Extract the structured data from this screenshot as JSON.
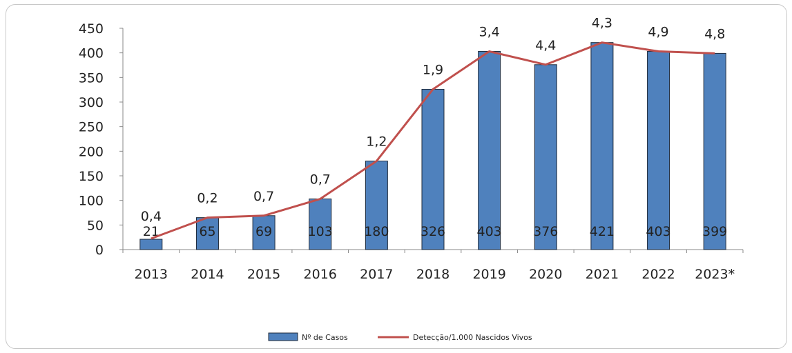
{
  "chart_data": {
    "type": "bar",
    "categories": [
      "2013",
      "2014",
      "2015",
      "2016",
      "2017",
      "2018",
      "2019",
      "2020",
      "2021",
      "2022",
      "2023*"
    ],
    "series": [
      {
        "name": "Nº de Casos",
        "type": "bar",
        "values": [
          21,
          65,
          69,
          103,
          180,
          326,
          403,
          376,
          421,
          403,
          399
        ],
        "labels": [
          "21",
          "65",
          "69",
          "103",
          "180",
          "326",
          "403",
          "376",
          "421",
          "403",
          "399"
        ],
        "color": "#4F81BD"
      },
      {
        "name": "Detecção/1.000 Nascidos Vivos",
        "type": "line",
        "labels": [
          "0,4",
          "0,2",
          "0,7",
          "0,7",
          "1,2",
          "1,9",
          "3,4",
          "4,4",
          "4,3",
          "4,9",
          "4,8"
        ],
        "color": "#C0504D"
      }
    ],
    "yticks": [
      "0",
      "50",
      "100",
      "150",
      "200",
      "250",
      "300",
      "350",
      "400",
      "450"
    ],
    "ylim": [
      0,
      450
    ],
    "grid": false,
    "legend_position": "bottom"
  }
}
